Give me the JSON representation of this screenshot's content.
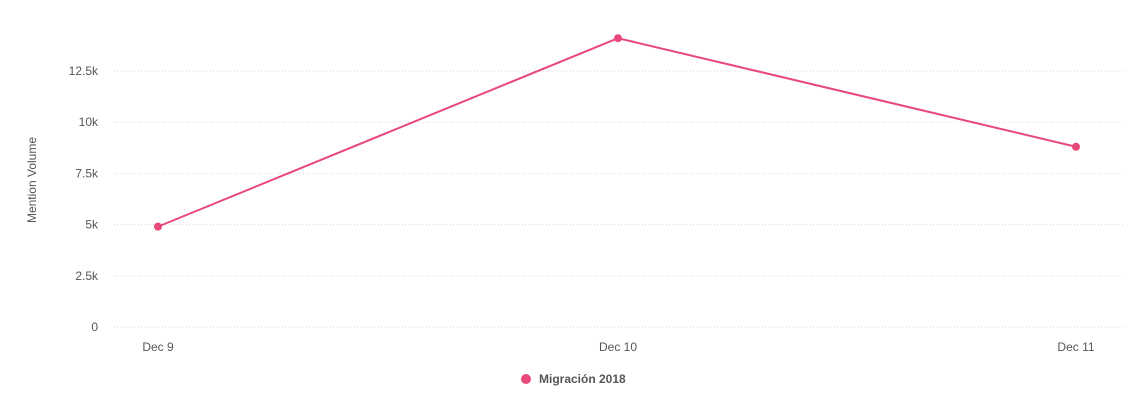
{
  "chart_data": {
    "type": "line",
    "title": "",
    "xlabel": "",
    "ylabel": "Mention Volume",
    "categories": [
      "Dec 9",
      "Dec 10",
      "Dec 11"
    ],
    "series": [
      {
        "name": "Migración 2018",
        "color": "#e8487a",
        "values": [
          4900,
          14100,
          8800
        ]
      }
    ],
    "ylim": [
      0,
      14500
    ],
    "yticks": [
      0,
      2500,
      5000,
      7500,
      10000,
      12500
    ],
    "ytick_labels": [
      "0",
      "2.5k",
      "5k",
      "7.5k",
      "10k",
      "12.5k"
    ],
    "grid": true,
    "legend_position": "bottom-center"
  }
}
